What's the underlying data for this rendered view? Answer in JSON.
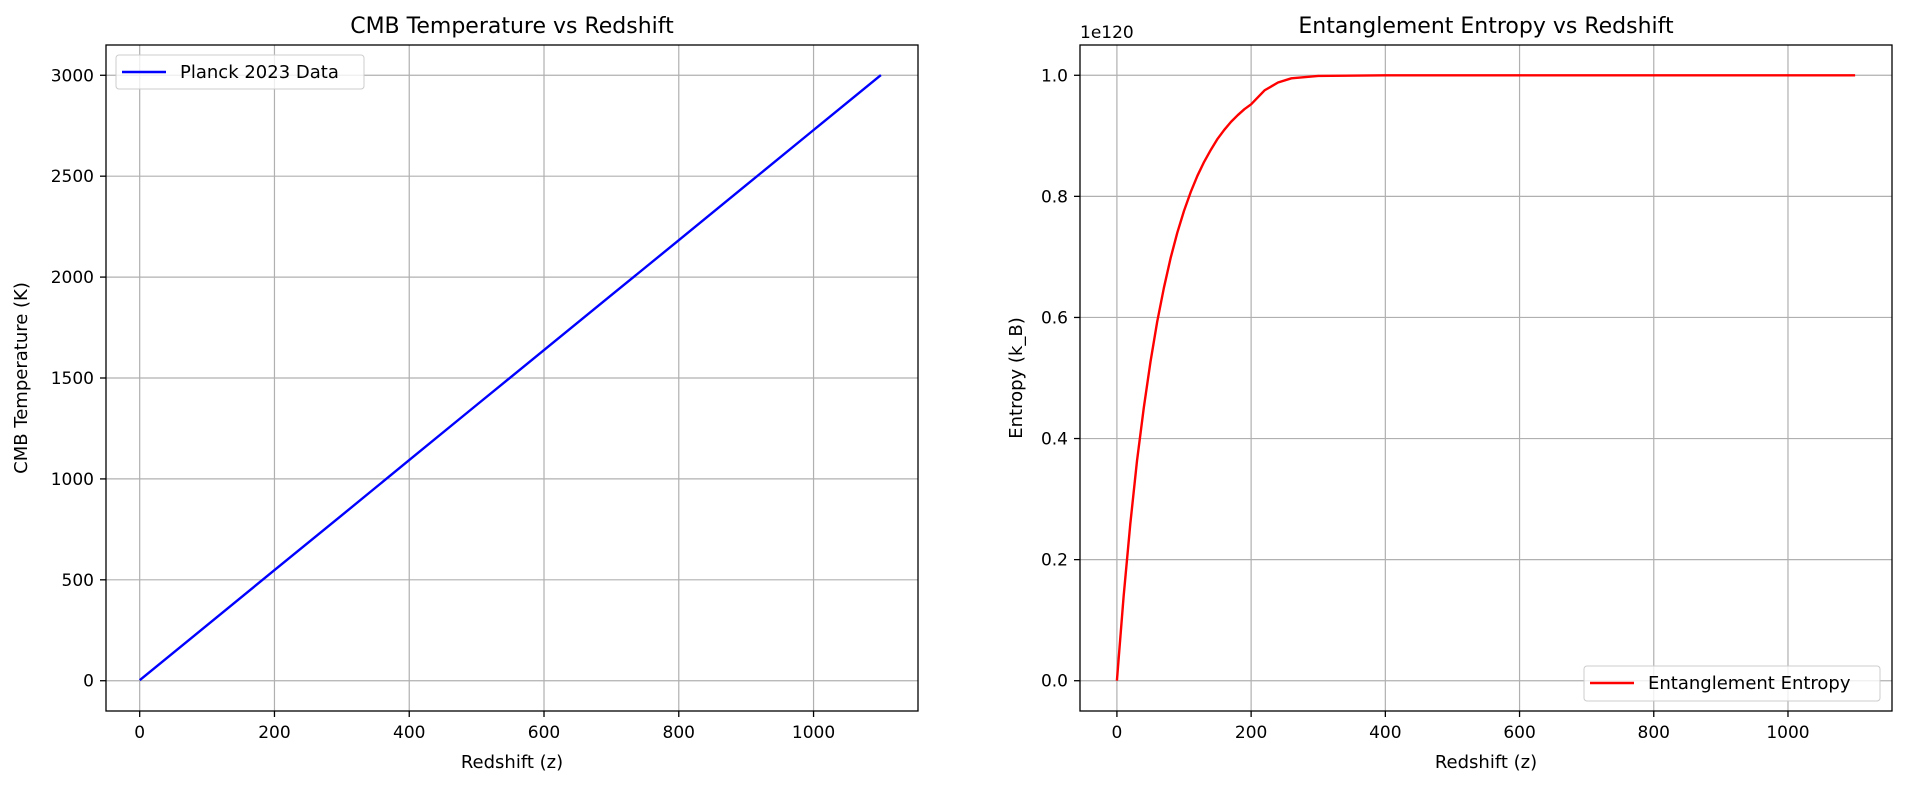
{
  "chart_data": [
    {
      "type": "line",
      "title": "CMB Temperature vs Redshift",
      "xlabel": "Redshift (z)",
      "ylabel": "CMB Temperature (K)",
      "xlim": [
        -50,
        1155
      ],
      "ylim": [
        -150,
        3150
      ],
      "xticks": [
        0,
        200,
        400,
        600,
        800,
        1000
      ],
      "yticks": [
        0,
        500,
        1000,
        1500,
        2000,
        2500,
        3000
      ],
      "ytick_labels": [
        "0",
        "500",
        "1000",
        "1500",
        "2000",
        "2500",
        "3000"
      ],
      "offset_text": "",
      "grid": true,
      "legend_position": "upper-left",
      "series": [
        {
          "name": "Planck 2023 Data",
          "color": "#0000ff",
          "x": [
            0,
            100,
            200,
            300,
            400,
            500,
            600,
            700,
            800,
            900,
            1000,
            1100
          ],
          "y": [
            2.7,
            275,
            548,
            820,
            1093,
            1366,
            1638,
            1911,
            2183,
            2456,
            2729,
            3001
          ]
        }
      ]
    },
    {
      "type": "line",
      "title": "Entanglement Entropy vs Redshift",
      "xlabel": "Redshift (z)",
      "ylabel": "Entropy (k_B)",
      "xlim": [
        -55,
        1155
      ],
      "ylim": [
        -0.05,
        1.05
      ],
      "xticks": [
        0,
        200,
        400,
        600,
        800,
        1000
      ],
      "yticks": [
        0.0,
        0.2,
        0.4,
        0.6,
        0.8,
        1.0
      ],
      "ytick_labels": [
        "0.0",
        "0.2",
        "0.4",
        "0.6",
        "0.8",
        "1.0"
      ],
      "offset_text": "1e120",
      "grid": true,
      "legend_position": "lower-right",
      "series": [
        {
          "name": "Entanglement Entropy",
          "color": "#ff0000",
          "x": [
            0,
            10,
            20,
            30,
            40,
            50,
            60,
            70,
            80,
            90,
            100,
            110,
            120,
            130,
            140,
            150,
            160,
            170,
            180,
            190,
            200,
            220,
            240,
            260,
            300,
            400,
            500,
            600,
            700,
            800,
            900,
            1000,
            1100
          ],
          "y": [
            0,
            0.139,
            0.259,
            0.363,
            0.451,
            0.527,
            0.593,
            0.649,
            0.698,
            0.74,
            0.776,
            0.807,
            0.834,
            0.857,
            0.877,
            0.895,
            0.91,
            0.923,
            0.934,
            0.944,
            0.952,
            0.975,
            0.988,
            0.995,
            0.999,
            1.0,
            1.0,
            1.0,
            1.0,
            1.0,
            1.0,
            1.0,
            1.0
          ]
        }
      ]
    }
  ]
}
